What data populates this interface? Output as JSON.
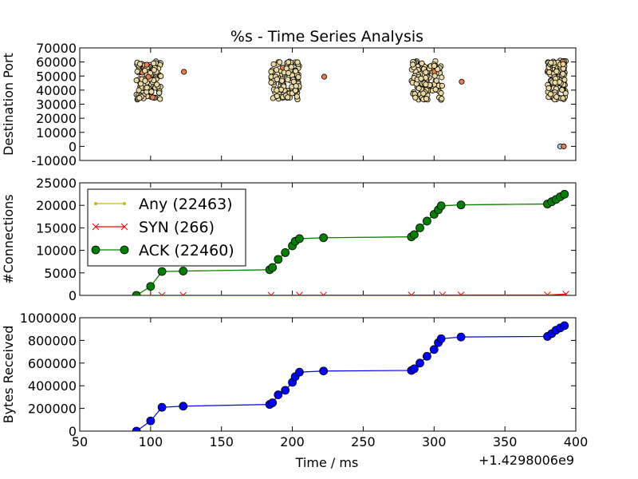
{
  "chart_data": {
    "type": "multi-panel",
    "title": "%s - Time Series Analysis",
    "x_axis": {
      "label": "Time / ms",
      "offset_text": "+1.4298006e9",
      "range": [
        50,
        400
      ],
      "ticks": [
        50,
        100,
        150,
        200,
        250,
        300,
        350,
        400
      ]
    },
    "panels": [
      {
        "id": "destination-port",
        "type": "scatter",
        "ylabel": "Destination Port",
        "ylim": [
          -10000,
          70000
        ],
        "yticks": [
          -10000,
          0,
          10000,
          20000,
          30000,
          40000,
          50000,
          60000,
          70000
        ],
        "marker_color": "#ead9a0",
        "accent_color": "#e87e4f",
        "bursts": [
          {
            "x_range": [
              90,
              108
            ],
            "y_range": [
              33000,
              61000
            ]
          },
          {
            "x_range": [
              185,
              205
            ],
            "y_range": [
              33000,
              61000
            ]
          },
          {
            "x_range": [
              284,
              306
            ],
            "y_range": [
              33000,
              61000
            ]
          },
          {
            "x_range": [
              380,
              393
            ],
            "y_range": [
              33000,
              61000
            ]
          }
        ],
        "isolated_points": [
          {
            "x": 123.5,
            "y": 53000
          },
          {
            "x": 222.5,
            "y": 49500
          },
          {
            "x": 319.5,
            "y": 46000
          },
          {
            "x": 389,
            "y": 0
          },
          {
            "x": 391.5,
            "y": 0
          }
        ]
      },
      {
        "id": "connections",
        "type": "line",
        "ylabel": "#Connections",
        "ylim": [
          0,
          25000
        ],
        "yticks": [
          0,
          5000,
          10000,
          15000,
          20000,
          25000
        ],
        "series": [
          {
            "name": "Any (22463)",
            "color": "#bfbf00",
            "marker": "dot",
            "x": [
              90,
              100,
              108,
              123,
              184,
              186,
              190,
              195,
              200,
              202,
              205,
              222,
              284,
              286,
              290,
              295,
              300,
              303,
              305,
              319,
              380,
              383,
              386,
              389,
              392
            ],
            "y": [
              0,
              2000,
              5300,
              5400,
              5700,
              6200,
              8000,
              9500,
              11000,
              12000,
              12600,
              12800,
              13000,
              13500,
              15000,
              16500,
              18000,
              19000,
              19900,
              20100,
              20300,
              20800,
              21300,
              21900,
              22463
            ]
          },
          {
            "name": "SYN (266)",
            "color": "#ff0000",
            "marker": "x",
            "x": [
              90,
              108,
              123,
              185,
              205,
              222,
              284,
              306,
              319,
              380,
              393
            ],
            "y": [
              0,
              20,
              25,
              30,
              50,
              55,
              60,
              80,
              90,
              100,
              266
            ]
          },
          {
            "name": "ACK (22460)",
            "color": "#007f00",
            "marker": "circle",
            "x": [
              90,
              100,
              108,
              123,
              184,
              186,
              190,
              195,
              200,
              202,
              205,
              222,
              284,
              286,
              290,
              295,
              300,
              303,
              305,
              319,
              380,
              383,
              386,
              389,
              392
            ],
            "y": [
              0,
              2000,
              5300,
              5400,
              5700,
              6200,
              8000,
              9500,
              11000,
              12000,
              12600,
              12800,
              13000,
              13500,
              15000,
              16500,
              18000,
              19000,
              19900,
              20100,
              20300,
              20800,
              21300,
              21900,
              22460
            ]
          }
        ],
        "legend": {
          "placement": "upper-left"
        }
      },
      {
        "id": "bytes-received",
        "type": "line",
        "ylabel": "Bytes Received",
        "ylim": [
          0,
          1000000
        ],
        "yticks": [
          0,
          200000,
          400000,
          600000,
          800000,
          1000000
        ],
        "series": [
          {
            "color": "#0000ff",
            "marker": "circle",
            "x": [
              90,
              100,
              108,
              123,
              184,
              186,
              190,
              195,
              200,
              202,
              205,
              222,
              284,
              286,
              290,
              295,
              300,
              303,
              305,
              319,
              380,
              383,
              386,
              389,
              392
            ],
            "y": [
              0,
              90000,
              210000,
              220000,
              235000,
              250000,
              320000,
              360000,
              430000,
              480000,
              520000,
              530000,
              535000,
              550000,
              600000,
              660000,
              720000,
              780000,
              815000,
              830000,
              835000,
              860000,
              890000,
              910000,
              930000
            ]
          }
        ]
      }
    ]
  }
}
